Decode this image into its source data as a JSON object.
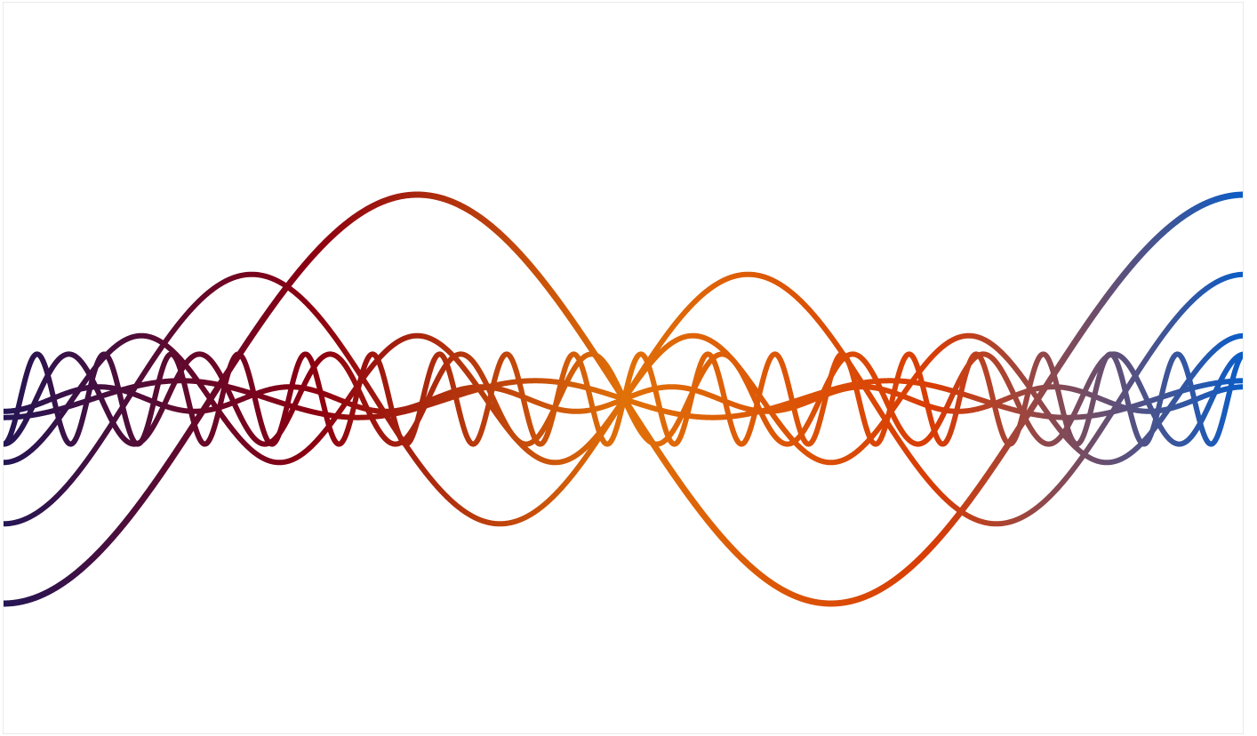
{
  "artwork": {
    "gradient_stops": [
      "#241655",
      "#8c0010",
      "#e07008",
      "#d83c05",
      "#0a5dc8"
    ],
    "waves": [
      {
        "name": "wave-1",
        "amplitude": 1.0,
        "cycles": 1.5,
        "phase": 0.0
      },
      {
        "name": "wave-2",
        "amplitude": 0.61,
        "cycles": 2.5,
        "phase": 0.0
      },
      {
        "name": "wave-3",
        "amplitude": 0.31,
        "cycles": 4.5,
        "phase": 0.0
      },
      {
        "name": "wave-4",
        "amplitude": 0.22,
        "cycles": 9.5,
        "phase": 0.0
      },
      {
        "name": "wave-5",
        "amplitude": 0.22,
        "cycles": 18.5,
        "phase": 0.0
      },
      {
        "name": "wave-6",
        "amplitude": 0.09,
        "cycles": 3.5,
        "phase": 0.0
      },
      {
        "name": "wave-7",
        "amplitude": 0.06,
        "cycles": 6.5,
        "phase": 0.0
      }
    ]
  }
}
